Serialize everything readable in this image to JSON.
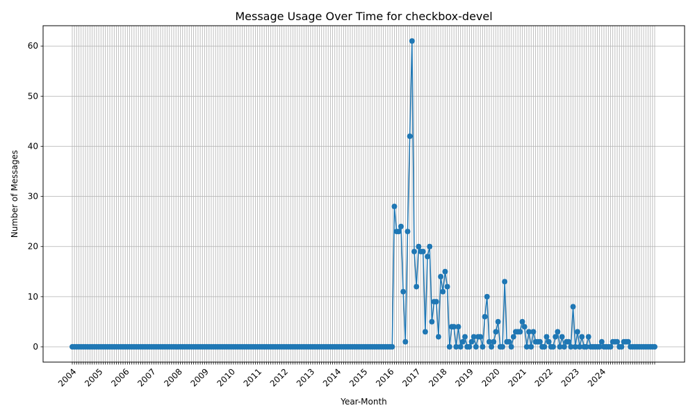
{
  "chart_data": {
    "type": "line",
    "title": "Message Usage Over Time for checkbox-devel",
    "xlabel": "Year-Month",
    "ylabel": "Number of Messages",
    "year_ticks": [
      "2004",
      "2005",
      "2006",
      "2007",
      "2008",
      "2009",
      "2010",
      "2011",
      "2012",
      "2013",
      "2014",
      "2015",
      "2016",
      "2017",
      "2018",
      "2019",
      "2020",
      "2021",
      "2022",
      "2023",
      "2024"
    ],
    "y_ticks": [
      0,
      10,
      20,
      30,
      40,
      50,
      60
    ],
    "ylim": [
      -3.05,
      64.05
    ],
    "grid": true,
    "color": "#1f77b4",
    "start": "2004-01",
    "series": [
      {
        "values": [
          0,
          0,
          0,
          0,
          0,
          0,
          0,
          0,
          0,
          0,
          0,
          0,
          0,
          0,
          0,
          0,
          0,
          0,
          0,
          0,
          0,
          0,
          0,
          0,
          0,
          0,
          0,
          0,
          0,
          0,
          0,
          0,
          0,
          0,
          0,
          0,
          0,
          0,
          0,
          0,
          0,
          0,
          0,
          0,
          0,
          0,
          0,
          0,
          0,
          0,
          0,
          0,
          0,
          0,
          0,
          0,
          0,
          0,
          0,
          0,
          0,
          0,
          0,
          0,
          0,
          0,
          0,
          0,
          0,
          0,
          0,
          0,
          0,
          0,
          0,
          0,
          0,
          0,
          0,
          0,
          0,
          0,
          0,
          0,
          0,
          0,
          0,
          0,
          0,
          0,
          0,
          0,
          0,
          0,
          0,
          0,
          0,
          0,
          0,
          0,
          0,
          0,
          0,
          0,
          0,
          0,
          0,
          0,
          0,
          0,
          0,
          0,
          0,
          0,
          0,
          0,
          0,
          0,
          0,
          0,
          0,
          0,
          0,
          0,
          0,
          0,
          0,
          0,
          0,
          0,
          0,
          0,
          0,
          0,
          0,
          0,
          0,
          0,
          0,
          0,
          0,
          0,
          0,
          0,
          0,
          0,
          28,
          23,
          23,
          24,
          11,
          1,
          23,
          42,
          61,
          19,
          12,
          20,
          19,
          19,
          3,
          18,
          20,
          5,
          9,
          9,
          2,
          14,
          11,
          15,
          12,
          0,
          4,
          4,
          0,
          4,
          0,
          1,
          2,
          0,
          0,
          1,
          2,
          0,
          2,
          2,
          0,
          6,
          10,
          1,
          0,
          1,
          3,
          5,
          0,
          0,
          13,
          1,
          1,
          0,
          2,
          3,
          3,
          3,
          5,
          4,
          0,
          3,
          0,
          3,
          1,
          1,
          1,
          0,
          0,
          2,
          1,
          0,
          0,
          2,
          3,
          0,
          2,
          0,
          1,
          1,
          0,
          8,
          0,
          3,
          0,
          2,
          0,
          0,
          2,
          0,
          0,
          0,
          0,
          0,
          1,
          0,
          0,
          0,
          0,
          1,
          1,
          1,
          0,
          0,
          1,
          1,
          1,
          0,
          0,
          0,
          0,
          0,
          0,
          0,
          0,
          0,
          0,
          0,
          0
        ]
      }
    ]
  }
}
